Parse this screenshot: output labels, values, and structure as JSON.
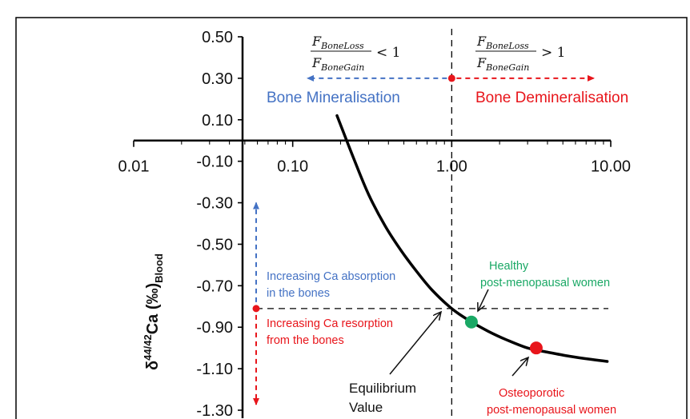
{
  "chart_data": {
    "type": "line",
    "title": "",
    "xlabel": "",
    "ylabel": "δ44/42Ca (‰)Blood",
    "ylabel_parts": {
      "delta": "δ",
      "sup": "44/42",
      "ca": "Ca (‰)",
      "sub": "Blood"
    },
    "x_scale": "log",
    "xlim": [
      0.01,
      10
    ],
    "ylim": [
      -1.3,
      0.5
    ],
    "x_ticks": [
      0.01,
      0.1,
      1,
      10
    ],
    "x_tick_labels": [
      "0.01",
      "0.10",
      "1.00",
      "10.00"
    ],
    "y_ticks": [
      0.5,
      0.3,
      0.1,
      -0.1,
      -0.3,
      -0.5,
      -0.7,
      -0.9,
      -1.1,
      -1.3
    ],
    "y_tick_labels": [
      "0.50",
      "0.30",
      "0.10",
      "-0.10",
      "-0.30",
      "-0.50",
      "-0.70",
      "-0.90",
      "-1.10",
      "-1.30"
    ],
    "grid": false,
    "series": [
      {
        "x": [
          0.19,
          0.24,
          0.3,
          0.38,
          0.48,
          0.6,
          0.75,
          1.0,
          1.3,
          1.7,
          2.2,
          3.0,
          4.0,
          5.5,
          7.5,
          9.5
        ],
        "y": [
          0.12,
          -0.08,
          -0.26,
          -0.41,
          -0.53,
          -0.63,
          -0.72,
          -0.81,
          -0.87,
          -0.92,
          -0.96,
          -1.0,
          -1.02,
          -1.04,
          -1.055,
          -1.065
        ],
        "color": "#000000"
      }
    ],
    "points": [
      {
        "x": 1.33,
        "y": -0.875,
        "color": "#1aa865"
      },
      {
        "x": 3.4,
        "y": -1.0,
        "color": "#e8151b"
      }
    ],
    "reference_lines": {
      "x": 1.0,
      "y": -0.81
    },
    "annotations": {
      "bone_mineralisation": "Bone Mineralisation",
      "bone_demineralisation": "Bone Demineralisation",
      "ratio_lt": {
        "num": "F",
        "num_sub": "BoneLoss",
        "den": "F",
        "den_sub": "BoneGain",
        "op": "< 1"
      },
      "ratio_gt": {
        "num": "F",
        "num_sub": "BoneLoss",
        "den": "F",
        "den_sub": "BoneGain",
        "op": "> 1"
      },
      "absorption_1": "Increasing Ca absorption",
      "absorption_2": "in the bones",
      "resorption_1": "Increasing Ca resorption",
      "resorption_2": "from the bones",
      "healthy_1": "Healthy",
      "healthy_2": "post-menopausal women",
      "osteo_1": "Osteoporotic",
      "osteo_2": "post-menopausal women",
      "equilibrium_1": "Equilibrium",
      "equilibrium_2": "Value"
    },
    "colors": {
      "blue": "#4472c4",
      "red": "#e8151b",
      "green": "#1aa865",
      "black": "#000000"
    }
  }
}
